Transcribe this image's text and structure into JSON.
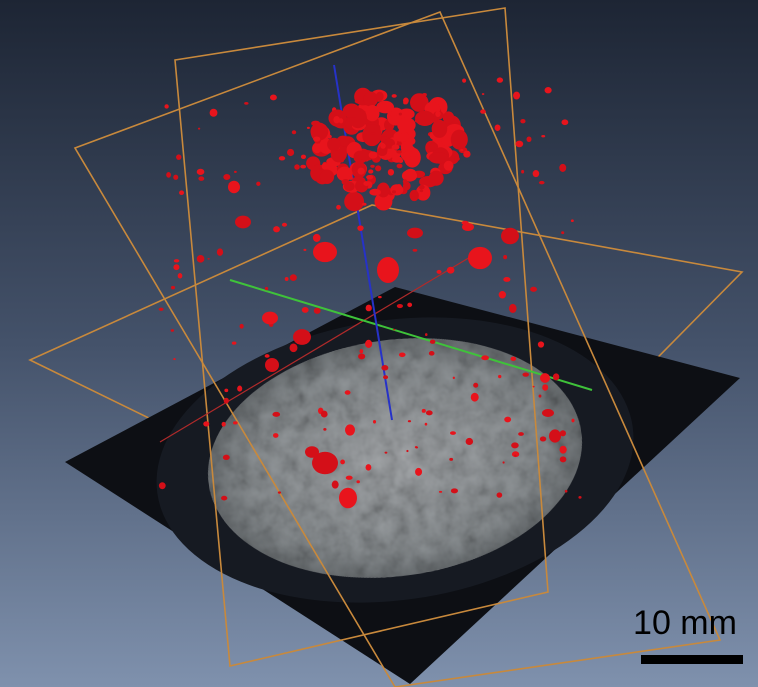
{
  "scale_bar": {
    "label": "10 mm"
  }
}
